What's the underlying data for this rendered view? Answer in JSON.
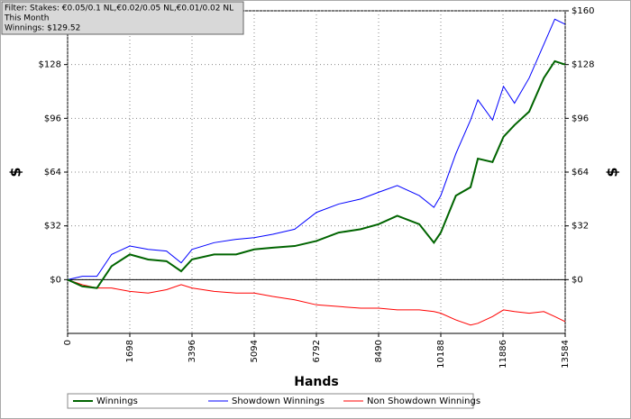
{
  "chart_data": {
    "type": "line",
    "annotations": [
      "Filter: Stakes: €0.05/0.1 NL,€0.02/0.05 NL,€0.01/0.02 NL",
      "This Month",
      "Winnings: $129.52"
    ],
    "xlabel": "Hands",
    "ylabel": "$",
    "x": [
      0,
      400,
      800,
      1200,
      1698,
      2200,
      2700,
      3100,
      3396,
      4000,
      4600,
      5094,
      5600,
      6200,
      6792,
      7400,
      8000,
      8490,
      9000,
      9600,
      10000,
      10188,
      10600,
      11000,
      11200,
      11600,
      11900,
      12200,
      12600,
      13000,
      13300,
      13584
    ],
    "series": [
      {
        "name": "Winnings",
        "color": "#006400",
        "values": [
          0,
          -4,
          -5,
          8,
          15,
          12,
          11,
          5,
          12,
          15,
          15,
          18,
          19,
          20,
          23,
          28,
          30,
          33,
          38,
          33,
          22,
          28,
          50,
          55,
          72,
          70,
          85,
          92,
          100,
          120,
          130,
          128
        ]
      },
      {
        "name": "Showdown Winnings",
        "color": "#0000ff",
        "values": [
          0,
          2,
          2,
          15,
          20,
          18,
          17,
          10,
          18,
          22,
          24,
          25,
          27,
          30,
          40,
          45,
          48,
          52,
          56,
          50,
          43,
          50,
          75,
          95,
          107,
          95,
          115,
          105,
          120,
          140,
          155,
          152
        ]
      },
      {
        "name": "Non Showdown Winnings",
        "color": "#ff0000",
        "values": [
          0,
          -3,
          -5,
          -5,
          -7,
          -8,
          -6,
          -3,
          -5,
          -7,
          -8,
          -8,
          -10,
          -12,
          -15,
          -16,
          -17,
          -17,
          -18,
          -18,
          -19,
          -20,
          -24,
          -27,
          -26,
          -22,
          -18,
          -19,
          -20,
          -19,
          -22,
          -25
        ]
      }
    ],
    "xlim": [
      0,
      13584
    ],
    "xticks": [
      0,
      1698,
      3396,
      5094,
      6792,
      8490,
      10188,
      11886,
      13584
    ],
    "ylim": [
      -32,
      160
    ],
    "yticks": [
      {
        "value": 0,
        "label": "$0"
      },
      {
        "value": 32,
        "label": "$32"
      },
      {
        "value": 64,
        "label": "$64"
      },
      {
        "value": 96,
        "label": "$96"
      },
      {
        "value": 128,
        "label": "$128"
      },
      {
        "value": 160,
        "label": "$160"
      }
    ],
    "grid": true,
    "legend": "bottom"
  }
}
